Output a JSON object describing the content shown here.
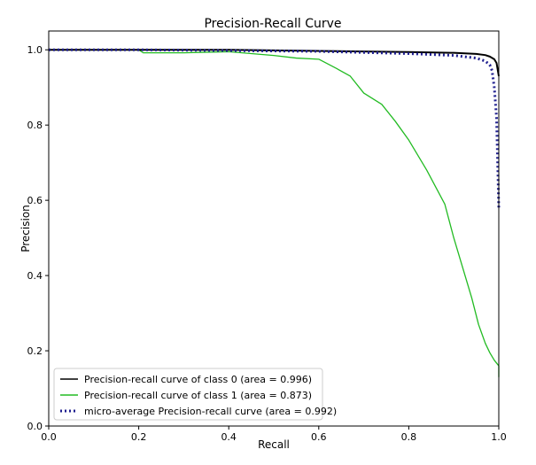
{
  "chart_data": {
    "type": "line",
    "title": "Precision-Recall Curve",
    "xlabel": "Recall",
    "ylabel": "Precision",
    "xlim": [
      0.0,
      1.0
    ],
    "ylim": [
      0.0,
      1.05
    ],
    "xticks": [
      "0.0",
      "0.2",
      "0.4",
      "0.6",
      "0.8",
      "1.0"
    ],
    "yticks": [
      "0.0",
      "0.2",
      "0.4",
      "0.6",
      "0.8",
      "1.0"
    ],
    "grid": false,
    "legend_position": "lower-left",
    "series": [
      {
        "name": "Precision-recall curve of class 0 (area = 0.996)",
        "color": "#000000",
        "style": "solid",
        "points": [
          [
            0.0,
            1.0
          ],
          [
            0.2,
            1.0
          ],
          [
            0.4,
            1.0
          ],
          [
            0.6,
            0.997
          ],
          [
            0.8,
            0.994
          ],
          [
            0.9,
            0.992
          ],
          [
            0.95,
            0.989
          ],
          [
            0.97,
            0.986
          ],
          [
            0.98,
            0.982
          ],
          [
            0.99,
            0.975
          ],
          [
            0.995,
            0.965
          ],
          [
            1.0,
            0.93
          ]
        ]
      },
      {
        "name": "Precision-recall curve of class 1 (area = 0.873)",
        "color": "#22bb22",
        "style": "solid",
        "points": [
          [
            0.0,
            1.0
          ],
          [
            0.2,
            1.0
          ],
          [
            0.21,
            0.992
          ],
          [
            0.3,
            0.992
          ],
          [
            0.4,
            0.995
          ],
          [
            0.45,
            0.99
          ],
          [
            0.5,
            0.985
          ],
          [
            0.55,
            0.978
          ],
          [
            0.6,
            0.975
          ],
          [
            0.64,
            0.95
          ],
          [
            0.67,
            0.93
          ],
          [
            0.7,
            0.885
          ],
          [
            0.74,
            0.855
          ],
          [
            0.77,
            0.81
          ],
          [
            0.8,
            0.76
          ],
          [
            0.82,
            0.72
          ],
          [
            0.84,
            0.68
          ],
          [
            0.86,
            0.635
          ],
          [
            0.88,
            0.59
          ],
          [
            0.9,
            0.5
          ],
          [
            0.91,
            0.46
          ],
          [
            0.92,
            0.42
          ],
          [
            0.94,
            0.34
          ],
          [
            0.955,
            0.27
          ],
          [
            0.97,
            0.22
          ],
          [
            0.98,
            0.195
          ],
          [
            0.99,
            0.175
          ],
          [
            1.0,
            0.16
          ],
          [
            1.0,
            0.13
          ]
        ]
      },
      {
        "name": "micro-average Precision-recall curve (area = 0.992)",
        "color": "#1f1f8f",
        "style": "dotted",
        "points": [
          [
            0.0,
            1.0
          ],
          [
            0.2,
            1.0
          ],
          [
            0.4,
            0.998
          ],
          [
            0.6,
            0.996
          ],
          [
            0.8,
            0.99
          ],
          [
            0.9,
            0.985
          ],
          [
            0.95,
            0.978
          ],
          [
            0.97,
            0.97
          ],
          [
            0.98,
            0.96
          ],
          [
            0.985,
            0.945
          ],
          [
            0.99,
            0.9
          ],
          [
            0.995,
            0.82
          ],
          [
            1.0,
            0.58
          ]
        ]
      }
    ]
  }
}
